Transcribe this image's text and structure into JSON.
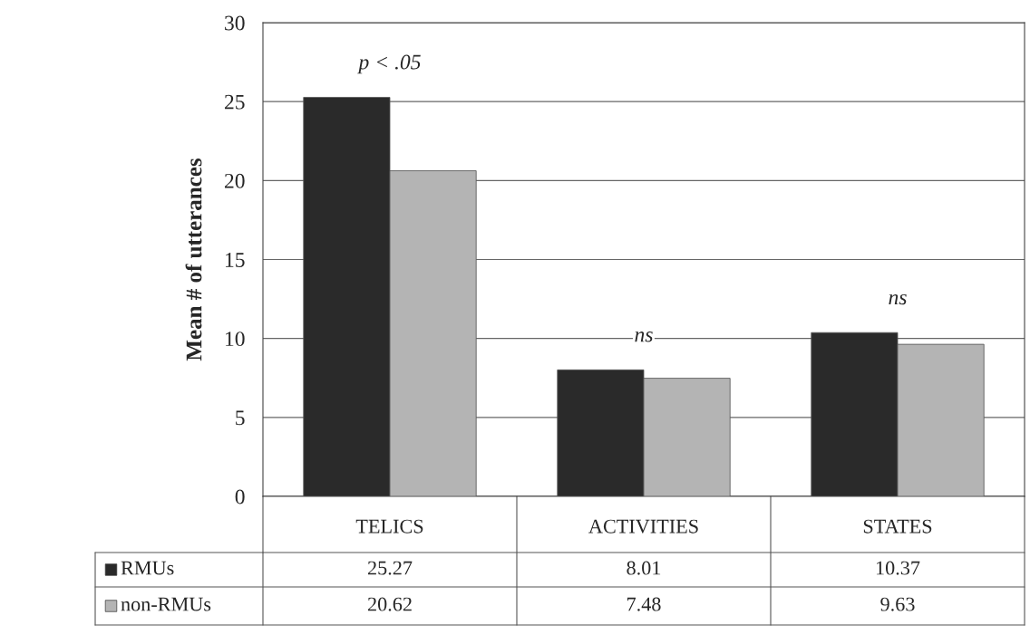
{
  "chart_data": {
    "type": "bar",
    "ylabel": "Mean # of utterances",
    "categories": [
      "TELICS",
      "ACTIVITIES",
      "STATES"
    ],
    "series": [
      {
        "name": "RMUs",
        "color": "#2a2a2a",
        "values": [
          25.27,
          8.01,
          10.37
        ]
      },
      {
        "name": "non-RMUs",
        "color": "#b4b4b4",
        "values": [
          20.62,
          7.48,
          9.63
        ]
      }
    ],
    "ylim": [
      0,
      30
    ],
    "yticks": [
      0,
      5,
      10,
      15,
      20,
      25,
      30
    ],
    "grid": "y",
    "legend": "bottom",
    "data_labels": true,
    "annotations": [
      "p < .05",
      "ns",
      "ns"
    ]
  }
}
